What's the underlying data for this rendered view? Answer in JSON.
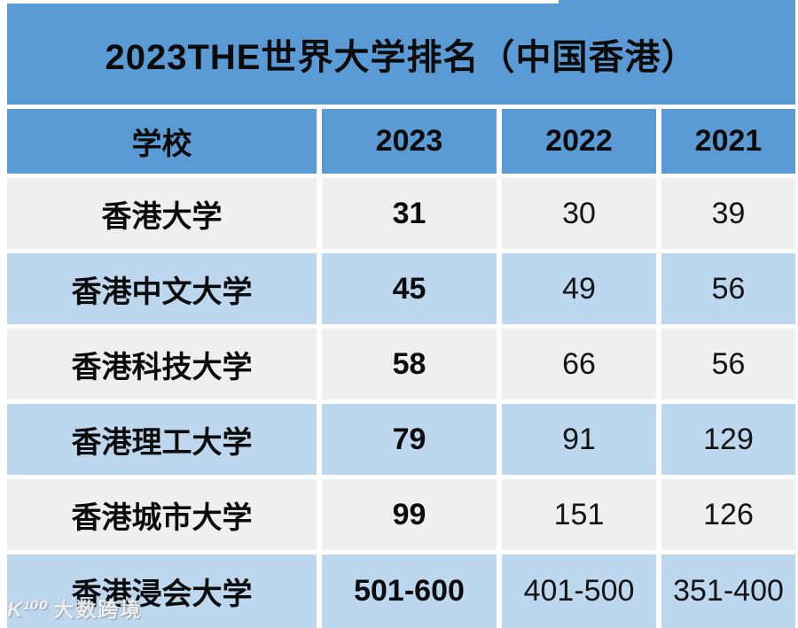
{
  "title_banner": "2023THE世界大学排名（中国香港）",
  "chart_data": {
    "type": "table",
    "title": "2023THE世界大学排名（中国香港）",
    "columns": [
      "学校",
      "2023",
      "2022",
      "2021"
    ],
    "rows": [
      [
        "香港大学",
        "31",
        "30",
        "39"
      ],
      [
        "香港中文大学",
        "45",
        "49",
        "56"
      ],
      [
        "香港科技大学",
        "58",
        "66",
        "56"
      ],
      [
        "香港理工大学",
        "79",
        "91",
        "129"
      ],
      [
        "香港城市大学",
        "99",
        "151",
        "126"
      ],
      [
        "香港浸会大学",
        "501-600",
        "401-500",
        "351-400"
      ]
    ],
    "layout": {
      "striping": [
        "gray",
        "blue",
        "gray",
        "blue",
        "gray",
        "blue"
      ],
      "bold_columns": [
        "学校",
        "2023"
      ]
    }
  },
  "colors": {
    "banner_blue": "#5b9bd5",
    "row_gray": "#f0efef",
    "row_blue": "#bdd7ee",
    "text": "#0b0b0b",
    "background": "#ffffff"
  },
  "watermark": {
    "logo": "K¹⁰⁰",
    "text": "大数跨境"
  }
}
